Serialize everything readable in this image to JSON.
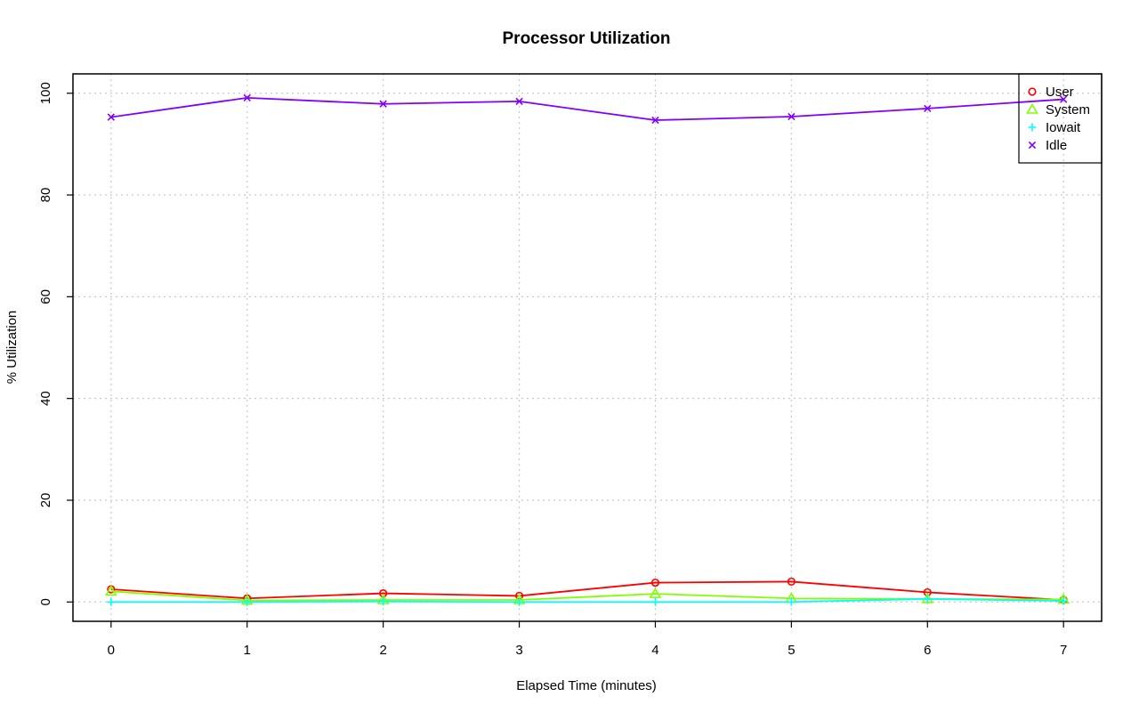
{
  "chart_data": {
    "type": "line",
    "title": "Processor Utilization",
    "xlabel": "Elapsed Time (minutes)",
    "ylabel": "% Utilization",
    "x": [
      0,
      1,
      2,
      3,
      4,
      5,
      6,
      7
    ],
    "x_ticks": [
      "0",
      "1",
      "2",
      "3",
      "4",
      "5",
      "6",
      "7"
    ],
    "y_ticks": [
      "0",
      "20",
      "40",
      "60",
      "80",
      "100"
    ],
    "xlim": [
      -0.28,
      7.28
    ],
    "ylim": [
      -3.8,
      103.8
    ],
    "grid": true,
    "legend_position": "top-right",
    "series": [
      {
        "name": "User",
        "color": "#ff0000",
        "marker": "circle",
        "values": [
          2.5,
          0.7,
          1.7,
          1.2,
          3.8,
          4.0,
          1.9,
          0.4
        ]
      },
      {
        "name": "System",
        "color": "#80ff00",
        "marker": "triangle",
        "values": [
          2.1,
          0.3,
          0.4,
          0.4,
          1.6,
          0.7,
          0.6,
          0.5
        ]
      },
      {
        "name": "Iowait",
        "color": "#00ffff",
        "marker": "plus",
        "values": [
          0.0,
          0.0,
          0.1,
          0.0,
          0.0,
          0.0,
          0.6,
          0.2
        ]
      },
      {
        "name": "Idle",
        "color": "#8000ff",
        "marker": "cross",
        "values": [
          95.3,
          99.1,
          97.9,
          98.4,
          94.7,
          95.4,
          97.0,
          98.8
        ]
      }
    ]
  }
}
